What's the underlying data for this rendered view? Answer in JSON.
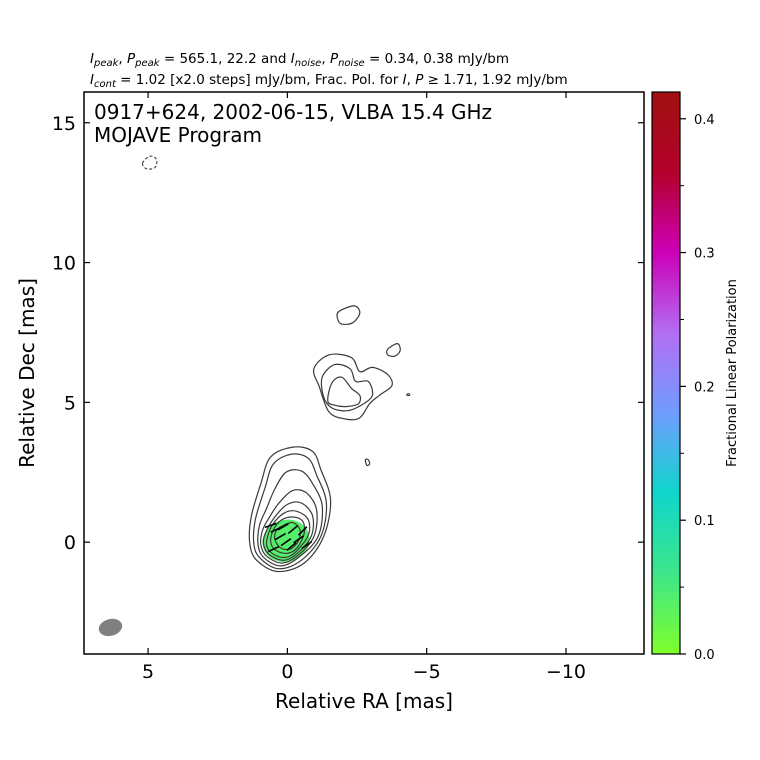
{
  "header": {
    "line1": {
      "ipeak_sym": "I",
      "ipeak_sub": "peak",
      "ppeak_sym": "P",
      "ppeak_sub": "peak",
      "peak_values": " = 565.1, 22.2 and ",
      "inoise_sym": "I",
      "inoise_sub": "noise",
      "pnoise_sym": "P",
      "pnoise_sub": "noise",
      "noise_values": " = 0.34, 0.38 mJy/bm"
    },
    "line2": {
      "icont_sym": "I",
      "icont_sub": "cont",
      "cont_text": " = 1.02 [x2.0 steps] mJy/bm, Frac. Pol. for ",
      "i_sym": "I",
      "sep": ", ",
      "p_sym": "P",
      "threshold": " ≥  1.71, 1.92 mJy/bm"
    }
  },
  "panel": {
    "title_line1": "0917+624, 2002-06-15, VLBA 15.4 GHz",
    "title_line2": "MOJAVE Program"
  },
  "colorbar": {
    "label": "Fractional Linear Polarization",
    "range": [
      0.0,
      0.42
    ],
    "ticks": [
      "0.0",
      "0.1",
      "0.2",
      "0.3",
      "0.4"
    ],
    "tick_values": [
      0.0,
      0.1,
      0.2,
      0.3,
      0.4
    ],
    "colors": [
      "#7fff2a",
      "#3ee68a",
      "#0fd6cc",
      "#6f9cff",
      "#b36ef2",
      "#cc00b8",
      "#b3002a",
      "#a01010"
    ]
  },
  "chart_data": {
    "type": "contour",
    "xlabel": "Relative RA [mas]",
    "ylabel": "Relative Dec [mas]",
    "xlim": [
      7.3,
      -12.8
    ],
    "ylim": [
      -4.0,
      16.1
    ],
    "xticks": [
      5,
      0,
      -5,
      -10
    ],
    "xtick_labels": [
      "5",
      "0",
      "−5",
      "−10"
    ],
    "yticks": [
      0,
      5,
      10,
      15
    ],
    "ytick_labels": [
      "0",
      "5",
      "10",
      "15"
    ],
    "core_contours": [
      [
        [
          1.35,
          -0.05
        ],
        [
          1.1,
          -0.65
        ],
        [
          0.35,
          -1.05
        ],
        [
          -0.6,
          -0.75
        ],
        [
          -1.3,
          0.2
        ],
        [
          -1.55,
          1.5
        ],
        [
          -1.2,
          2.6
        ],
        [
          -0.9,
          3.25
        ],
        [
          -0.2,
          3.4
        ],
        [
          0.6,
          3.05
        ],
        [
          0.95,
          2.1
        ],
        [
          1.3,
          0.9
        ]
      ],
      [
        [
          1.2,
          -0.1
        ],
        [
          0.95,
          -0.6
        ],
        [
          0.3,
          -0.95
        ],
        [
          -0.5,
          -0.65
        ],
        [
          -1.2,
          0.2
        ],
        [
          -1.4,
          1.4
        ],
        [
          -1.05,
          2.4
        ],
        [
          -0.75,
          3.0
        ],
        [
          -0.15,
          3.15
        ],
        [
          0.5,
          2.8
        ],
        [
          0.8,
          1.95
        ],
        [
          1.15,
          0.8
        ]
      ],
      [
        [
          1.05,
          -0.1
        ],
        [
          0.85,
          -0.55
        ],
        [
          0.25,
          -0.85
        ],
        [
          -0.4,
          -0.55
        ],
        [
          -1.1,
          0.2
        ],
        [
          -1.25,
          1.3
        ],
        [
          -0.9,
          2.1
        ],
        [
          -0.5,
          2.55
        ],
        [
          0.05,
          2.5
        ],
        [
          0.45,
          1.9
        ],
        [
          0.75,
          1.2
        ],
        [
          1.0,
          0.6
        ]
      ],
      [
        [
          0.95,
          -0.1
        ],
        [
          0.75,
          -0.5
        ],
        [
          0.2,
          -0.75
        ],
        [
          -0.35,
          -0.5
        ],
        [
          -0.95,
          0.2
        ],
        [
          -1.05,
          1.15
        ],
        [
          -0.7,
          1.75
        ],
        [
          -0.2,
          1.85
        ],
        [
          0.3,
          1.4
        ],
        [
          0.7,
          0.8
        ],
        [
          0.9,
          0.4
        ]
      ],
      [
        [
          0.85,
          -0.1
        ],
        [
          0.65,
          -0.45
        ],
        [
          0.15,
          -0.65
        ],
        [
          -0.3,
          -0.45
        ],
        [
          -0.85,
          0.2
        ],
        [
          -0.9,
          0.95
        ],
        [
          -0.5,
          1.4
        ],
        [
          0.0,
          1.35
        ],
        [
          0.45,
          0.9
        ],
        [
          0.8,
          0.3
        ]
      ],
      [
        [
          0.75,
          -0.05
        ],
        [
          0.55,
          -0.4
        ],
        [
          0.1,
          -0.55
        ],
        [
          -0.3,
          -0.35
        ],
        [
          -0.75,
          0.25
        ],
        [
          -0.75,
          0.8
        ],
        [
          -0.35,
          1.1
        ],
        [
          0.1,
          1.05
        ],
        [
          0.55,
          0.6
        ]
      ],
      [
        [
          0.6,
          0.0
        ],
        [
          0.4,
          -0.3
        ],
        [
          0.0,
          -0.4
        ],
        [
          -0.35,
          -0.2
        ],
        [
          -0.6,
          0.3
        ],
        [
          -0.55,
          0.75
        ],
        [
          -0.2,
          0.9
        ],
        [
          0.2,
          0.8
        ],
        [
          0.5,
          0.45
        ]
      ],
      [
        [
          0.45,
          0.1
        ],
        [
          0.25,
          -0.2
        ],
        [
          -0.1,
          -0.25
        ],
        [
          -0.4,
          0.05
        ],
        [
          -0.45,
          0.45
        ],
        [
          -0.2,
          0.7
        ],
        [
          0.15,
          0.6
        ],
        [
          0.4,
          0.4
        ]
      ]
    ],
    "jet_contours": [
      [
        [
          -1.15,
          5.55
        ],
        [
          -0.95,
          6.2
        ],
        [
          -1.5,
          6.7
        ],
        [
          -2.3,
          6.6
        ],
        [
          -2.6,
          6.1
        ],
        [
          -3.05,
          6.25
        ],
        [
          -3.6,
          6.0
        ],
        [
          -3.75,
          5.6
        ],
        [
          -3.3,
          5.25
        ],
        [
          -2.95,
          4.95
        ],
        [
          -2.6,
          4.45
        ],
        [
          -2.1,
          4.4
        ],
        [
          -1.5,
          4.65
        ]
      ],
      [
        [
          -1.3,
          5.2
        ],
        [
          -1.25,
          5.9
        ],
        [
          -1.7,
          6.35
        ],
        [
          -2.25,
          6.2
        ],
        [
          -2.45,
          5.75
        ],
        [
          -2.9,
          5.75
        ],
        [
          -3.05,
          5.25
        ],
        [
          -2.65,
          4.9
        ],
        [
          -2.15,
          4.7
        ],
        [
          -1.6,
          4.8
        ]
      ],
      [
        [
          -1.45,
          5.05
        ],
        [
          -1.6,
          5.7
        ],
        [
          -1.95,
          5.9
        ],
        [
          -2.3,
          5.5
        ],
        [
          -2.6,
          5.25
        ],
        [
          -2.55,
          4.95
        ],
        [
          -2.1,
          4.85
        ],
        [
          -1.7,
          4.9
        ]
      ]
    ],
    "small_contours": [
      [
        [
          -1.85,
          8.25
        ],
        [
          -2.4,
          8.45
        ],
        [
          -2.6,
          8.2
        ],
        [
          -2.35,
          7.85
        ],
        [
          -1.95,
          7.8
        ],
        [
          -1.8,
          8.0
        ]
      ],
      [
        [
          -3.6,
          6.9
        ],
        [
          -3.95,
          7.1
        ],
        [
          -4.05,
          6.85
        ],
        [
          -3.85,
          6.65
        ],
        [
          -3.6,
          6.7
        ]
      ],
      [
        [
          -2.8,
          2.95
        ],
        [
          -2.9,
          2.95
        ],
        [
          -2.95,
          2.8
        ],
        [
          -2.85,
          2.75
        ]
      ],
      [
        [
          -4.3,
          5.3
        ],
        [
          -4.38,
          5.3
        ],
        [
          -4.38,
          5.25
        ],
        [
          -4.3,
          5.25
        ]
      ]
    ],
    "negative_contours": [
      [
        [
          5.2,
          13.55
        ],
        [
          4.95,
          13.8
        ],
        [
          4.7,
          13.7
        ],
        [
          4.75,
          13.4
        ],
        [
          5.05,
          13.35
        ]
      ]
    ],
    "polarization_area": {
      "center": [
        0.05,
        0.05
      ],
      "radius_ra": 0.85,
      "radius_dec": 0.75,
      "fractional_polarization": 0.04
    },
    "evpa_ticks": [
      [
        0.6,
        0.6,
        20
      ],
      [
        0.4,
        0.45,
        25
      ],
      [
        0.25,
        0.2,
        30
      ],
      [
        0.05,
        0.0,
        35
      ],
      [
        -0.15,
        -0.15,
        40
      ],
      [
        -0.4,
        0.1,
        35
      ],
      [
        -0.55,
        0.4,
        45
      ],
      [
        0.15,
        0.55,
        30
      ],
      [
        -0.2,
        0.45,
        40
      ],
      [
        -0.7,
        -0.1,
        35
      ],
      [
        0.5,
        -0.25,
        25
      ]
    ],
    "beam": {
      "ra": 6.35,
      "dec": -3.05,
      "major_mas": 0.85,
      "minor_mas": 0.6,
      "angle_deg": -15
    }
  }
}
